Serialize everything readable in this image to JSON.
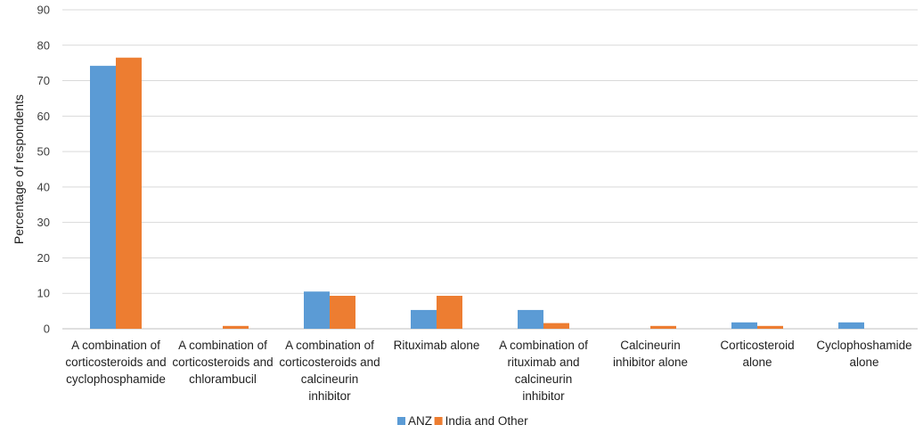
{
  "chart_data": {
    "type": "bar",
    "title": "",
    "xlabel": "",
    "ylabel": "Percentage of respondents",
    "ylim": [
      0,
      90
    ],
    "yticks": [
      0,
      10,
      20,
      30,
      40,
      50,
      60,
      70,
      80,
      90
    ],
    "grid": true,
    "legend_position": "bottom-center",
    "categories": [
      [
        "A combination of",
        "corticosteroids and",
        "cyclophosphamide"
      ],
      [
        "A combination of",
        "corticosteroids and",
        "chlorambucil"
      ],
      [
        "A combination of",
        "corticosteroids and",
        "calcineurin",
        "inhibitor"
      ],
      [
        "Rituximab alone"
      ],
      [
        "A combination of",
        "rituximab and",
        "calcineurin",
        "inhibitor"
      ],
      [
        "Calcineurin",
        "inhibitor alone"
      ],
      [
        "Corticosteroid",
        "alone"
      ],
      [
        "Cyclophoshamide",
        "alone"
      ]
    ],
    "series": [
      {
        "name": "ANZ",
        "color": "#5b9bd5",
        "values": [
          74.2,
          0,
          10.5,
          5.3,
          5.3,
          0,
          1.8,
          1.8
        ]
      },
      {
        "name": "India and Other",
        "color": "#ed7d31",
        "values": [
          76.5,
          0.8,
          9.3,
          9.3,
          1.6,
          0.8,
          0.8,
          0
        ]
      }
    ]
  }
}
